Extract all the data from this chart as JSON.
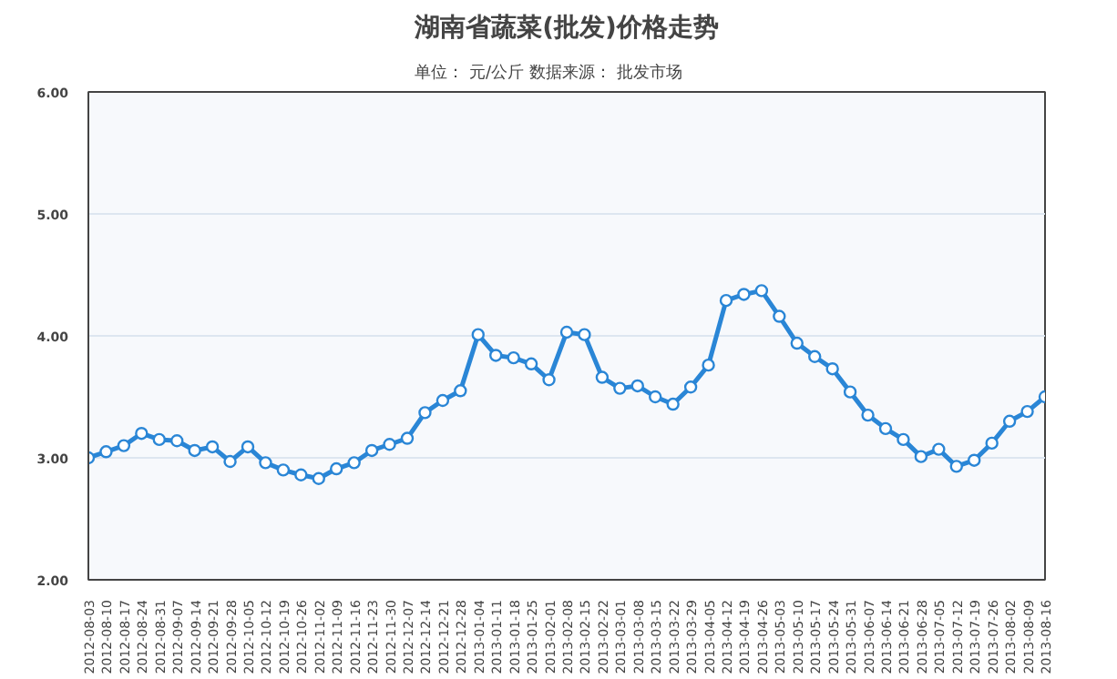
{
  "chart_data": {
    "type": "line",
    "title": "湖南省蔬菜(批发)价格走势",
    "subtitle": "单位： 元/公斤        数据来源： 批发市场",
    "categories": [
      "2012-08-03",
      "2012-08-10",
      "2012-08-17",
      "2012-08-24",
      "2012-08-31",
      "2012-09-07",
      "2012-09-14",
      "2012-09-21",
      "2012-09-28",
      "2012-10-05",
      "2012-10-12",
      "2012-10-19",
      "2012-10-26",
      "2012-11-02",
      "2012-11-09",
      "2012-11-16",
      "2012-11-23",
      "2012-11-30",
      "2012-12-07",
      "2012-12-14",
      "2012-12-21",
      "2012-12-28",
      "2013-01-04",
      "2013-01-11",
      "2013-01-18",
      "2013-01-25",
      "2013-02-01",
      "2013-02-08",
      "2013-02-15",
      "2013-02-22",
      "2013-03-01",
      "2013-03-08",
      "2013-03-15",
      "2013-03-22",
      "2013-03-29",
      "2013-04-05",
      "2013-04-12",
      "2013-04-19",
      "2013-04-26",
      "2013-05-03",
      "2013-05-10",
      "2013-05-17",
      "2013-05-24",
      "2013-05-31",
      "2013-06-07",
      "2013-06-14",
      "2013-06-21",
      "2013-06-28",
      "2013-07-05",
      "2013-07-12",
      "2013-07-19",
      "2013-07-26",
      "2013-08-02",
      "2013-08-09",
      "2013-08-16"
    ],
    "series": [
      {
        "color": "#2a86d6",
        "values": [
          3.0,
          3.05,
          3.1,
          3.2,
          3.15,
          3.14,
          3.06,
          3.09,
          2.97,
          3.09,
          2.96,
          2.9,
          2.86,
          2.83,
          2.91,
          2.96,
          3.06,
          3.11,
          3.16,
          3.37,
          3.47,
          3.55,
          4.01,
          3.84,
          3.82,
          3.77,
          3.64,
          4.03,
          4.01,
          3.66,
          3.57,
          3.59,
          3.5,
          3.44,
          3.58,
          3.76,
          4.29,
          4.34,
          4.37,
          4.16,
          3.94,
          3.83,
          3.73,
          3.54,
          3.35,
          3.24,
          3.15,
          3.01,
          3.07,
          2.93,
          2.98,
          3.12,
          3.3,
          3.38,
          3.5
        ]
      }
    ],
    "ylim": [
      2,
      6
    ],
    "yticks": [
      {
        "value": 2,
        "label": "2.00"
      },
      {
        "value": 3,
        "label": "3.00"
      },
      {
        "value": 4,
        "label": "4.00"
      },
      {
        "value": 5,
        "label": "5.00"
      },
      {
        "value": 6,
        "label": "6.00"
      }
    ],
    "grid": "y",
    "marker": "circle",
    "line_style": "solid"
  }
}
